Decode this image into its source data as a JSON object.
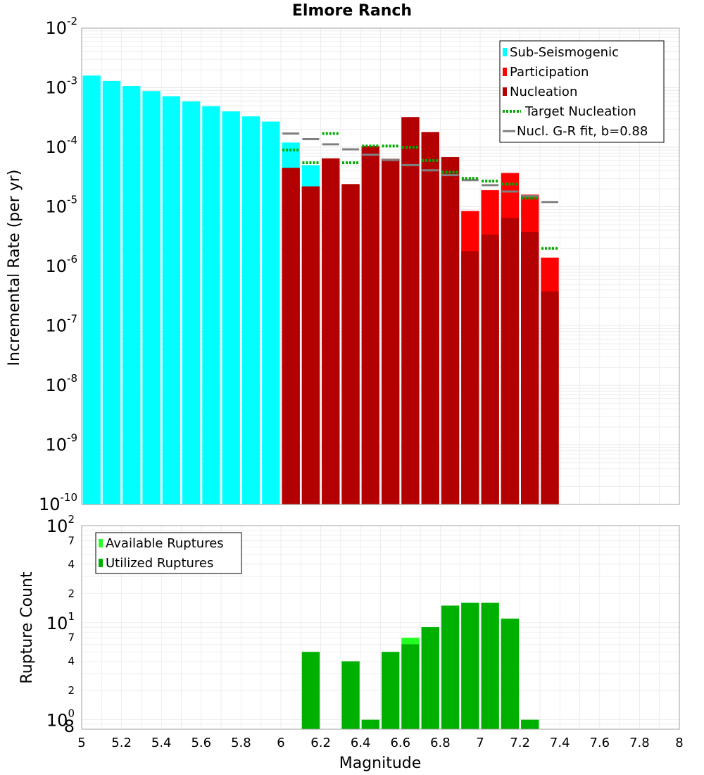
{
  "colors": {
    "sub_seismogenic": "#00ffff",
    "participation": "#ff0000",
    "nucleation": "#b30000",
    "target": "#00aa00",
    "gr_fit": "#808080",
    "available": "#22ff22",
    "utilized": "#00b000",
    "grid": "#e6e6e6",
    "frame": "#a0a0a0"
  },
  "chart_data": [
    {
      "type": "bar",
      "title": "Elmore Ranch",
      "xlabel": "",
      "ylabel": "Incremental Rate (per yr)",
      "yscale": "log",
      "xlim": [
        5,
        8
      ],
      "ylim": [
        1e-10,
        0.01
      ],
      "bin_width": 0.1,
      "y_ticks": [
        {
          "base": "10",
          "exp": "-10",
          "value": 1e-10
        },
        {
          "base": "10",
          "exp": "-9",
          "value": 1e-09
        },
        {
          "base": "10",
          "exp": "-8",
          "value": 1e-08
        },
        {
          "base": "10",
          "exp": "-7",
          "value": 1e-07
        },
        {
          "base": "10",
          "exp": "-6",
          "value": 1e-06
        },
        {
          "base": "10",
          "exp": "-5",
          "value": 1e-05
        },
        {
          "base": "10",
          "exp": "-4",
          "value": 0.0001
        },
        {
          "base": "10",
          "exp": "-3",
          "value": 0.001
        },
        {
          "base": "10",
          "exp": "-2",
          "value": 0.01
        }
      ],
      "legend": [
        {
          "label": "Sub-Seismogenic",
          "style": "box",
          "color_key": "sub_seismogenic"
        },
        {
          "label": "Participation",
          "style": "box",
          "color_key": "participation"
        },
        {
          "label": "Nucleation",
          "style": "box",
          "color_key": "nucleation"
        },
        {
          "label": "Target Nucleation",
          "style": "dotted",
          "color_key": "target"
        },
        {
          "label": "Nucl. G-R fit, b=0.88",
          "style": "line",
          "color_key": "gr_fit"
        }
      ],
      "series": [
        {
          "name": "Sub-Seismogenic",
          "x": [
            5.05,
            5.15,
            5.25,
            5.35,
            5.45,
            5.55,
            5.65,
            5.75,
            5.85,
            5.95,
            6.05,
            6.15
          ],
          "values": [
            0.0016,
            0.0013,
            0.00107,
            0.00088,
            0.00072,
            0.00059,
            0.00049,
            0.0004,
            0.00033,
            0.00027,
            0.00012,
            5e-05
          ]
        },
        {
          "name": "Participation",
          "x": [
            6.05,
            6.15,
            6.25,
            6.35,
            6.45,
            6.55,
            6.65,
            6.75,
            6.85,
            6.95,
            7.05,
            7.15,
            7.25,
            7.35
          ],
          "values": [
            4.5e-05,
            2.2e-05,
            6.5e-05,
            2.4e-05,
            0.000105,
            6.4e-05,
            0.00032,
            0.00018,
            6.8e-05,
            8.5e-06,
            1.9e-05,
            3.7e-05,
            1.6e-05,
            1.4e-06
          ]
        },
        {
          "name": "Nucleation",
          "x": [
            6.05,
            6.15,
            6.25,
            6.35,
            6.45,
            6.55,
            6.65,
            6.75,
            6.85,
            6.95,
            7.05,
            7.15,
            7.25,
            7.35
          ],
          "values": [
            4.5e-05,
            2.2e-05,
            6.5e-05,
            2.4e-05,
            0.000105,
            6.4e-05,
            0.00032,
            0.00018,
            6.8e-05,
            1.8e-06,
            3.4e-06,
            6.5e-06,
            3.8e-06,
            3.8e-07
          ]
        },
        {
          "name": "Target Nucleation",
          "x": [
            6.05,
            6.15,
            6.25,
            6.35,
            6.45,
            6.55,
            6.65,
            6.75,
            6.85,
            6.95,
            7.05,
            7.15,
            7.25,
            7.35
          ],
          "values": [
            9e-05,
            5.5e-05,
            0.00017,
            5.5e-05,
            0.000105,
            0.000105,
            0.0001,
            6e-05,
            3.8e-05,
            3e-05,
            2.7e-05,
            2.4e-05,
            1.4e-05,
            2e-06
          ]
        },
        {
          "name": "Nucl. G-R fit, b=0.88",
          "x": [
            6.05,
            6.15,
            6.25,
            6.35,
            6.45,
            6.55,
            6.65,
            6.75,
            6.85,
            6.95,
            7.05,
            7.15,
            7.25,
            7.35
          ],
          "values": [
            0.00017,
            0.000137,
            0.000112,
            9.2e-05,
            7.5e-05,
            6.1e-05,
            5e-05,
            4.1e-05,
            3.4e-05,
            2.8e-05,
            2.3e-05,
            1.8e-05,
            1.5e-05,
            1.2e-05
          ]
        }
      ]
    },
    {
      "type": "bar",
      "title": "",
      "xlabel": "Magnitude",
      "ylabel": "Rupture Count",
      "yscale": "log",
      "xlim": [
        5,
        8
      ],
      "ylim": [
        0.8,
        100
      ],
      "bin_width": 0.1,
      "x_ticks": [
        "5",
        "5.2",
        "5.4",
        "5.6",
        "5.8",
        "6",
        "6.2",
        "6.4",
        "6.6",
        "6.8",
        "7",
        "7.2",
        "7.4",
        "7.6",
        "7.8",
        "8"
      ],
      "y_major_ticks": [
        {
          "base": "10",
          "exp": "0",
          "value": 1
        },
        {
          "base": "10",
          "exp": "1",
          "value": 10
        },
        {
          "base": "10",
          "exp": "2",
          "value": 100
        }
      ],
      "y_minor_ticks": [
        {
          "label": "8",
          "value": 0.8
        },
        {
          "label": "2",
          "value": 2
        },
        {
          "label": "4",
          "value": 4
        },
        {
          "label": "7",
          "value": 7
        },
        {
          "label": "2",
          "value": 20
        },
        {
          "label": "4",
          "value": 40
        },
        {
          "label": "7",
          "value": 70
        }
      ],
      "legend": [
        {
          "label": "Available Ruptures",
          "style": "box",
          "color_key": "available"
        },
        {
          "label": "Utilized Ruptures",
          "style": "box",
          "color_key": "utilized"
        }
      ],
      "series": [
        {
          "name": "Available Ruptures",
          "x": [
            6.15,
            6.35,
            6.45,
            6.55,
            6.65,
            6.75,
            6.85,
            6.95,
            7.05,
            7.15,
            7.25
          ],
          "values": [
            5,
            4,
            1,
            5,
            7,
            9,
            15,
            16,
            16,
            11,
            1
          ]
        },
        {
          "name": "Utilized Ruptures",
          "x": [
            6.15,
            6.35,
            6.45,
            6.55,
            6.65,
            6.75,
            6.85,
            6.95,
            7.05,
            7.15,
            7.25
          ],
          "values": [
            5,
            4,
            1,
            5,
            6,
            9,
            15,
            16,
            16,
            11,
            1
          ]
        }
      ]
    }
  ]
}
